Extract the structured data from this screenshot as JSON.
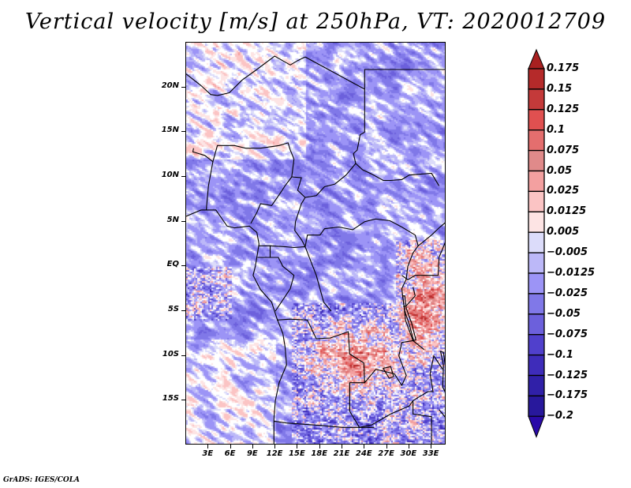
{
  "title": "Vertical velocity [m/s] at 250hPa, VT: 2020012709",
  "footer": "GrADS: IGES/COLA",
  "map": {
    "variable": "Vertical velocity",
    "units": "m/s",
    "level": "250hPa",
    "valid_time": "2020012709",
    "lon_range": [
      0,
      35
    ],
    "lat_range": [
      -20,
      25
    ],
    "lat_ticks": [
      {
        "value": 20,
        "label": "20N"
      },
      {
        "value": 15,
        "label": "15N"
      },
      {
        "value": 10,
        "label": "10N"
      },
      {
        "value": 5,
        "label": "5N"
      },
      {
        "value": 0,
        "label": "EQ"
      },
      {
        "value": -5,
        "label": "5S"
      },
      {
        "value": -10,
        "label": "10S"
      },
      {
        "value": -15,
        "label": "15S"
      }
    ],
    "lon_ticks": [
      {
        "value": 3,
        "label": "3E"
      },
      {
        "value": 6,
        "label": "6E"
      },
      {
        "value": 9,
        "label": "9E"
      },
      {
        "value": 12,
        "label": "12E"
      },
      {
        "value": 15,
        "label": "15E"
      },
      {
        "value": 18,
        "label": "18E"
      },
      {
        "value": 21,
        "label": "21E"
      },
      {
        "value": 24,
        "label": "24E"
      },
      {
        "value": 27,
        "label": "27E"
      },
      {
        "value": 30,
        "label": "30E"
      },
      {
        "value": 33,
        "label": "33E"
      }
    ]
  },
  "colorbar": {
    "levels": [
      {
        "label": "0.175",
        "color": "#b52a2a"
      },
      {
        "label": "0.15",
        "color": "#c43a3a"
      },
      {
        "label": "0.125",
        "color": "#e05050"
      },
      {
        "label": "0.1",
        "color": "#e46e6e"
      },
      {
        "label": "0.075",
        "color": "#e08a8a"
      },
      {
        "label": "0.05",
        "color": "#f3a0a0"
      },
      {
        "label": "0.025",
        "color": "#fbc4c4"
      },
      {
        "label": "0.0125",
        "color": "#fde4e4"
      },
      {
        "label": "0.005",
        "color": "#ffffff"
      },
      {
        "label": "-0.005",
        "color": "#dcdcfa"
      },
      {
        "label": "-0.0125",
        "color": "#bcb8f8"
      },
      {
        "label": "-0.025",
        "color": "#9c94f6"
      },
      {
        "label": "-0.05",
        "color": "#8078e8"
      },
      {
        "label": "-0.075",
        "color": "#6c60dc"
      },
      {
        "label": "-0.1",
        "color": "#5040cc"
      },
      {
        "label": "-0.125",
        "color": "#3e2cba"
      },
      {
        "label": "-0.175",
        "color": "#3020a8"
      },
      {
        "label": "-0.2",
        "color": "#28189c"
      }
    ],
    "top_arrow_color": "#a82020",
    "bottom_arrow_color": "#2a0aa8"
  }
}
